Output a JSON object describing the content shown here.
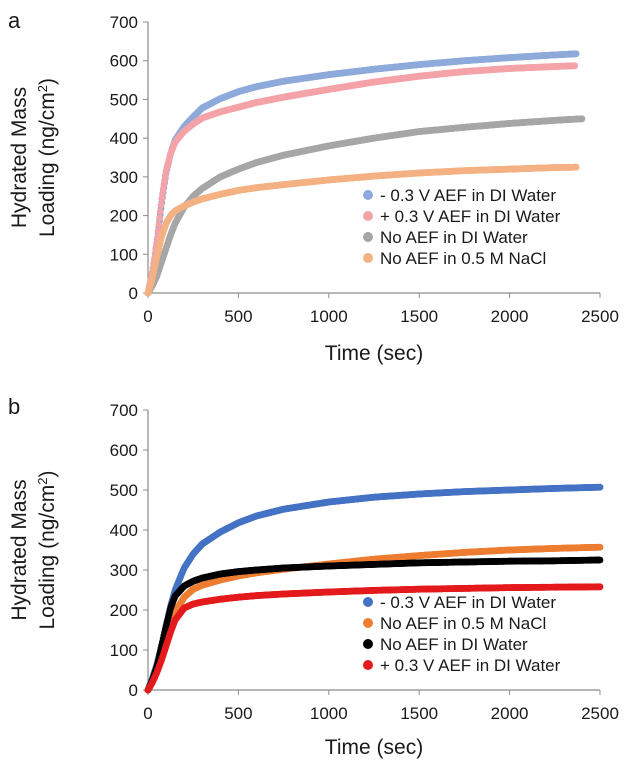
{
  "chart_data": [
    {
      "type": "scatter",
      "panel_label": "a",
      "ylabel": "Hydrated Mass Loading (ng/cm²)",
      "ylabel_line1": "Hydrated Mass",
      "ylabel_line2": "Loading (ng/cm",
      "ylabel_sup": "2",
      "ylabel_close": ")",
      "xlabel": "Time (sec)",
      "xlim": [
        0,
        2500
      ],
      "ylim": [
        0,
        700
      ],
      "xticks": [
        "0",
        "500",
        "1000",
        "1500",
        "2000",
        "2500"
      ],
      "yticks": [
        "0",
        "100",
        "200",
        "300",
        "400",
        "500",
        "600",
        "700"
      ],
      "grid": false,
      "legend_position": "bottom-right",
      "series": [
        {
          "name": "- 0.3 V AEF in DI Water",
          "color": "#8eaadb",
          "x": [
            0,
            25,
            50,
            75,
            100,
            125,
            150,
            200,
            250,
            300,
            400,
            500,
            600,
            750,
            1000,
            1250,
            1500,
            1750,
            2000,
            2250,
            2370
          ],
          "y": [
            0,
            55,
            130,
            230,
            310,
            360,
            395,
            430,
            455,
            478,
            502,
            520,
            533,
            547,
            564,
            578,
            590,
            600,
            608,
            615,
            618
          ]
        },
        {
          "name": "+ 0.3 V AEF in DI Water",
          "color": "#f4a3a8",
          "x": [
            0,
            25,
            50,
            75,
            100,
            125,
            150,
            200,
            250,
            300,
            400,
            500,
            600,
            750,
            1000,
            1250,
            1500,
            1750,
            2000,
            2250,
            2360
          ],
          "y": [
            0,
            55,
            135,
            240,
            315,
            360,
            390,
            418,
            437,
            452,
            468,
            480,
            492,
            506,
            526,
            545,
            560,
            572,
            580,
            585,
            587
          ]
        },
        {
          "name": "No AEF in DI Water",
          "color": "#a6a6a6",
          "x": [
            0,
            25,
            50,
            75,
            100,
            125,
            150,
            200,
            250,
            300,
            400,
            500,
            600,
            750,
            1000,
            1250,
            1500,
            1750,
            2000,
            2250,
            2400
          ],
          "y": [
            0,
            20,
            45,
            80,
            115,
            150,
            180,
            222,
            250,
            270,
            300,
            320,
            337,
            356,
            380,
            400,
            417,
            428,
            438,
            446,
            450
          ]
        },
        {
          "name": "No AEF in 0.5 M NaCl",
          "color": "#f4b183",
          "x": [
            0,
            25,
            50,
            75,
            100,
            125,
            150,
            200,
            250,
            300,
            400,
            500,
            600,
            750,
            1000,
            1250,
            1500,
            1750,
            2000,
            2250,
            2370
          ],
          "y": [
            0,
            40,
            95,
            145,
            180,
            200,
            212,
            225,
            235,
            243,
            255,
            265,
            272,
            280,
            292,
            302,
            310,
            316,
            320,
            324,
            325
          ]
        }
      ]
    },
    {
      "type": "scatter",
      "panel_label": "b",
      "ylabel": "Hydrated Mass Loading (ng/cm²)",
      "ylabel_line1": "Hydrated Mass",
      "ylabel_line2": "Loading (ng/cm",
      "ylabel_sup": "2",
      "ylabel_close": ")",
      "xlabel": "Time (sec)",
      "xlim": [
        0,
        2500
      ],
      "ylim": [
        0,
        700
      ],
      "xticks": [
        "0",
        "500",
        "1000",
        "1500",
        "2000",
        "2500"
      ],
      "yticks": [
        "0",
        "100",
        "200",
        "300",
        "400",
        "500",
        "600",
        "700"
      ],
      "grid": false,
      "legend_position": "bottom-right",
      "series": [
        {
          "name": "- 0.3 V AEF in DI Water",
          "color": "#4472c4",
          "x": [
            0,
            25,
            50,
            75,
            100,
            125,
            150,
            200,
            250,
            300,
            400,
            500,
            600,
            750,
            1000,
            1250,
            1500,
            1750,
            2000,
            2250,
            2500
          ],
          "y": [
            0,
            30,
            65,
            110,
            160,
            210,
            250,
            305,
            340,
            365,
            395,
            418,
            435,
            452,
            470,
            482,
            490,
            496,
            500,
            504,
            507
          ]
        },
        {
          "name": "No AEF in 0.5 M NaCl",
          "color": "#ed7d31",
          "x": [
            0,
            25,
            50,
            75,
            100,
            125,
            150,
            200,
            250,
            300,
            400,
            500,
            600,
            750,
            1000,
            1250,
            1500,
            1750,
            2000,
            2250,
            2500
          ],
          "y": [
            0,
            20,
            45,
            80,
            120,
            160,
            195,
            232,
            252,
            262,
            275,
            285,
            293,
            302,
            315,
            327,
            336,
            344,
            350,
            354,
            357
          ]
        },
        {
          "name": "No AEF in DI Water",
          "color": "#000000",
          "x": [
            0,
            25,
            50,
            75,
            100,
            125,
            150,
            200,
            250,
            300,
            400,
            500,
            600,
            750,
            1000,
            1250,
            1500,
            1750,
            2000,
            2250,
            2500
          ],
          "y": [
            0,
            25,
            60,
            110,
            160,
            205,
            235,
            260,
            272,
            280,
            290,
            296,
            300,
            305,
            310,
            314,
            318,
            320,
            322,
            323,
            325
          ]
        },
        {
          "name": "+ 0.3 V AEF in DI Water",
          "color": "#e41a1c",
          "x": [
            0,
            25,
            50,
            75,
            100,
            125,
            150,
            200,
            250,
            300,
            400,
            500,
            600,
            750,
            1000,
            1250,
            1500,
            1750,
            2000,
            2250,
            2500
          ],
          "y": [
            0,
            20,
            45,
            75,
            110,
            145,
            175,
            205,
            215,
            220,
            227,
            232,
            236,
            240,
            245,
            249,
            252,
            254,
            256,
            257,
            258
          ]
        }
      ]
    }
  ]
}
